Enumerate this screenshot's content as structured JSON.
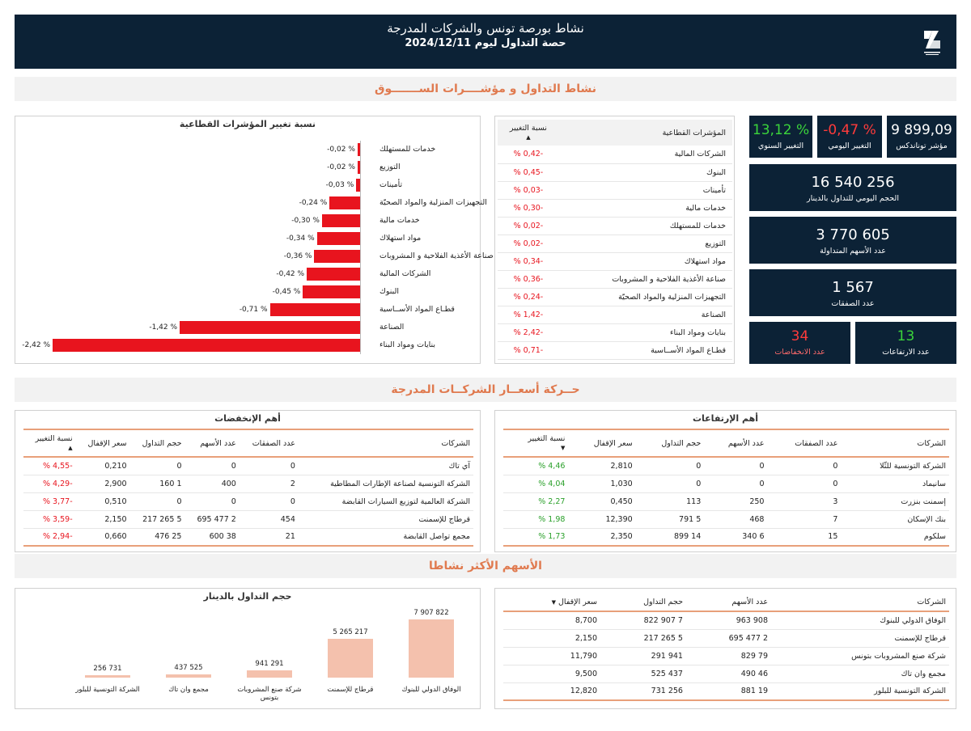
{
  "header": {
    "title": "نشاط بورصة تونس والشركات المدرجة",
    "subtitle": "حصة التداول ليوم 2024/12/11"
  },
  "sections": {
    "market": "نشاط التداول و مؤشــــرات الســـــــوق",
    "prices": "حــركة أسعــار الشركــات المدرجة",
    "active": "الأسهم الأكثر نشاطا"
  },
  "kpis": {
    "tunindex_value": "9 899,09",
    "tunindex_label": "مؤشر توناندكس",
    "daily_change_value": "-0,47 %",
    "daily_change_label": "التغيير اليومي",
    "yearly_change_value": "13,12 %",
    "yearly_change_label": "التغيير السنوي",
    "volume_value": "16 540 256",
    "volume_label": "الحجم اليومي للتداول بالدينار",
    "shares_value": "3 770 605",
    "shares_label": "عدد الأسهم المتداولة",
    "trades_value": "1 567",
    "trades_label": "عدد الصفقات",
    "rises_value": "13",
    "rises_label": "عدد الارتفاعات",
    "falls_value": "34",
    "falls_label": "عدد الانخفاضات"
  },
  "colors": {
    "navy": "#0c2236",
    "accent": "#e07a4f",
    "negative": "#e8141e",
    "positive": "#2aa02a",
    "bar_volume": "#f4c1ad"
  },
  "sector_chart": {
    "title": "نسبة تغيير المؤشرات القطاعية",
    "items": [
      {
        "label": "خدمات للمستهلك",
        "value": -0.02,
        "text": "-0,02 %"
      },
      {
        "label": "التوزيع",
        "value": -0.02,
        "text": "-0,02 %"
      },
      {
        "label": "تأمينات",
        "value": -0.03,
        "text": "-0,03 %"
      },
      {
        "label": "التجهيزات المنزلية والمواد الصحيّة",
        "value": -0.24,
        "text": "-0,24 %"
      },
      {
        "label": "خدمات مالية",
        "value": -0.3,
        "text": "-0,30 %"
      },
      {
        "label": "مواد استهلاك",
        "value": -0.34,
        "text": "-0,34 %"
      },
      {
        "label": "صناعة الأغذية الفلاحية و المشروبات",
        "value": -0.36,
        "text": "-0,36 %"
      },
      {
        "label": "الشركات المالية",
        "value": -0.42,
        "text": "-0,42 %"
      },
      {
        "label": "البنوك",
        "value": -0.45,
        "text": "-0,45 %"
      },
      {
        "label": "قطـاع المواد الأســاسية",
        "value": -0.71,
        "text": "-0,71 %"
      },
      {
        "label": "الصناعة",
        "value": -1.42,
        "text": "-1,42 %"
      },
      {
        "label": "بنايات ومواد البناء",
        "value": -2.42,
        "text": "-2,42 %"
      }
    ]
  },
  "sector_table": {
    "headers": {
      "name": "المؤشرات القطاعية",
      "change": "نسبة التغيير"
    },
    "rows": [
      {
        "name": "الشركات المالية",
        "change": "-0,42 %"
      },
      {
        "name": "البنوك",
        "change": "-0,45 %"
      },
      {
        "name": "تأمينات",
        "change": "-0,03 %"
      },
      {
        "name": "خدمات مالية",
        "change": "-0,30 %"
      },
      {
        "name": "خدمات للمستهلك",
        "change": "-0,02 %"
      },
      {
        "name": "التوزيع",
        "change": "-0,02 %"
      },
      {
        "name": "مواد استهلاك",
        "change": "-0,34 %"
      },
      {
        "name": "صناعة الأغذية الفلاحية و المشروبات",
        "change": "-0,36 %"
      },
      {
        "name": "التجهيزات المنزلية والمواد الصحيّة",
        "change": "-0,24 %"
      },
      {
        "name": "الصناعة",
        "change": "-1,42 %"
      },
      {
        "name": "بنايات ومواد البناء",
        "change": "-2,42 %"
      },
      {
        "name": "قطـاع المواد الأســاسية",
        "change": "-0,71 %"
      }
    ]
  },
  "gainers": {
    "title": "أهم الإرتفاعات",
    "headers": {
      "company": "الشركات",
      "trades": "عدد الصفقات",
      "shares": "عدد الأسهم",
      "volume": "حجم التداول",
      "close": "سعر الإقفال",
      "change": "نسبة التغيير"
    },
    "rows": [
      {
        "company": "الشركة التونسية للثّلا",
        "trades": "0",
        "shares": "0",
        "volume": "0",
        "close": "2,810",
        "change": "4,46 %"
      },
      {
        "company": "سانيماد",
        "trades": "0",
        "shares": "0",
        "volume": "0",
        "close": "1,030",
        "change": "4,04 %"
      },
      {
        "company": "إسمنت بنزرت",
        "trades": "3",
        "shares": "250",
        "volume": "113",
        "close": "0,450",
        "change": "2,27 %"
      },
      {
        "company": "بنك الإسكان",
        "trades": "7",
        "shares": "468",
        "volume": "5 791",
        "close": "12,390",
        "change": "1,98 %"
      },
      {
        "company": "سلكوم",
        "trades": "15",
        "shares": "6 340",
        "volume": "14 899",
        "close": "2,350",
        "change": "1,73 %"
      }
    ]
  },
  "losers": {
    "title": "أهم الإنخفضات",
    "headers": {
      "company": "الشركات",
      "trades": "عدد الصفقات",
      "shares": "عدد الأسهم",
      "volume": "حجم التداول",
      "close": "سعر الإقفال",
      "change": "نسبة التغيير"
    },
    "rows": [
      {
        "company": "آي تاك",
        "trades": "0",
        "shares": "0",
        "volume": "0",
        "close": "0,210",
        "change": "-4,55 %"
      },
      {
        "company": "الشركة التونسية لصناعة الإطارات المطاطية",
        "trades": "2",
        "shares": "400",
        "volume": "1 160",
        "close": "2,900",
        "change": "-4,29 %"
      },
      {
        "company": "الشركة العالمية لتوزيع السيارات القابضة",
        "trades": "0",
        "shares": "0",
        "volume": "0",
        "close": "0,510",
        "change": "-3,77 %"
      },
      {
        "company": "قرطاج للإسمنت",
        "trades": "454",
        "shares": "2 477 695",
        "volume": "5 265 217",
        "close": "2,150",
        "change": "-3,59 %"
      },
      {
        "company": "مجمع تواصل القابضة",
        "trades": "21",
        "shares": "38 600",
        "volume": "25 476",
        "close": "0,660",
        "change": "-2,94 %"
      }
    ]
  },
  "active_table": {
    "headers": {
      "company": "الشركات",
      "shares": "عدد الأسهم",
      "volume": "حجم التداول",
      "close": "سعر الإقفال"
    },
    "rows": [
      {
        "company": "الوفاق الدولي للبنوك",
        "shares": "908 963",
        "volume": "7 907 822",
        "close": "8,700"
      },
      {
        "company": "قرطاج للإسمنت",
        "shares": "2 477 695",
        "volume": "5 265 217",
        "close": "2,150"
      },
      {
        "company": "شركة صنع المشروبات بتونس",
        "shares": "79 829",
        "volume": "941 291",
        "close": "11,790"
      },
      {
        "company": "مجمع وان تاك",
        "shares": "46 490",
        "volume": "437 525",
        "close": "9,500"
      },
      {
        "company": "الشركة التونسية للبلور",
        "shares": "19 881",
        "volume": "256 731",
        "close": "12,820"
      }
    ]
  },
  "chart_data": {
    "type": "bar",
    "title": "حجم التداول بالدينار",
    "categories": [
      "الوفاق الدولي للبنوك",
      "قرطاج للإسمنت",
      "شركة صنع المشروبات بتونس",
      "مجمع وان تاك",
      "الشركة التونسية للبلور"
    ],
    "values": [
      7907822,
      5265217,
      941291,
      437525,
      256731
    ],
    "labels": [
      "7 907 822",
      "5 265 217",
      "941 291",
      "437 525",
      "256 731"
    ]
  }
}
